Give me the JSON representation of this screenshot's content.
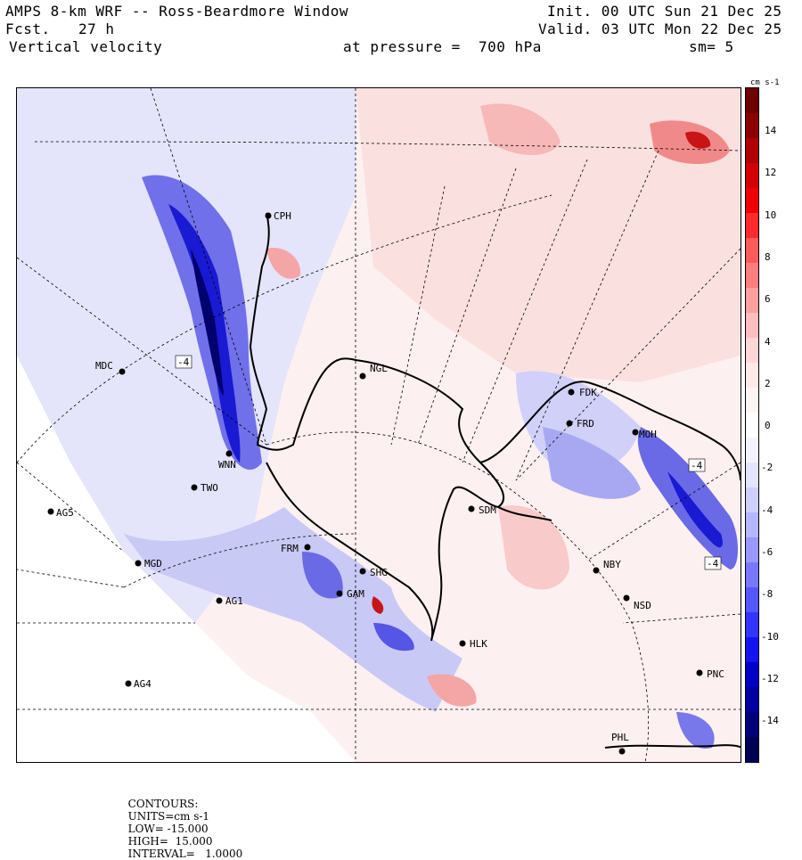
{
  "header": {
    "title": "AMPS 8-km WRF -- Ross-Beardmore Window",
    "forecast_label": "Fcst.",
    "forecast_hours": "27 h",
    "field": "Vertical velocity",
    "level_text": "at pressure =  700 hPa",
    "init": "Init. 00 UTC Sun 21 Dec 25",
    "valid": "Valid. 03 UTC Mon 22 Dec 25",
    "smoothing": "sm= 5"
  },
  "colorbar": {
    "units": "cm s-1",
    "tick_labels": [
      "14",
      "12",
      "10",
      "8",
      "6",
      "4",
      "2",
      "0",
      "-2",
      "-4",
      "-6",
      "-8",
      "-10",
      "-12",
      "-14"
    ],
    "colors": [
      "#6e0000",
      "#8c0000",
      "#b00000",
      "#d40000",
      "#f00000",
      "#ff2a2a",
      "#ff5a5a",
      "#ff7d7d",
      "#ff9f9f",
      "#ffbdbd",
      "#ffd6d6",
      "#ffe8e8",
      "#fff4f4",
      "#ffffff",
      "#f3f3ff",
      "#e4e4ff",
      "#cfcfff",
      "#b6b6ff",
      "#9898ff",
      "#7878ff",
      "#5656ff",
      "#3434ff",
      "#1414f0",
      "#0000c8",
      "#0000a0",
      "#00007a",
      "#000055"
    ]
  },
  "stations": [
    {
      "id": "CPH"
    },
    {
      "id": "MDC"
    },
    {
      "id": "NGL"
    },
    {
      "id": "FDK"
    },
    {
      "id": "FRD"
    },
    {
      "id": "MOH"
    },
    {
      "id": "WNN"
    },
    {
      "id": "TWO"
    },
    {
      "id": "AG5"
    },
    {
      "id": "SDM"
    },
    {
      "id": "FRM"
    },
    {
      "id": "MGD"
    },
    {
      "id": "SHG"
    },
    {
      "id": "GAM"
    },
    {
      "id": "NBY"
    },
    {
      "id": "AG1"
    },
    {
      "id": "NSD"
    },
    {
      "id": "HLK"
    },
    {
      "id": "PNC"
    },
    {
      "id": "AG4"
    },
    {
      "id": "PHL"
    }
  ],
  "contour_labels": [
    "-4",
    "-4",
    "-4"
  ],
  "footer": {
    "contours_label": "CONTOURS:",
    "units_text": "UNITS=cm s-1",
    "low": "LOW= -15.000",
    "high": "HIGH=  15.000",
    "interval": "INTERVAL=   1.0000"
  },
  "colors": {
    "negative_light": "#dcdcfa",
    "negative_mid": "#8a8af0",
    "negative_strong": "#1a1ad2",
    "positive_light": "#fbe3e3",
    "positive_mid": "#f4a6a6",
    "positive_strong": "#c81414",
    "coastline": "#000000",
    "graticule": "#000000"
  }
}
